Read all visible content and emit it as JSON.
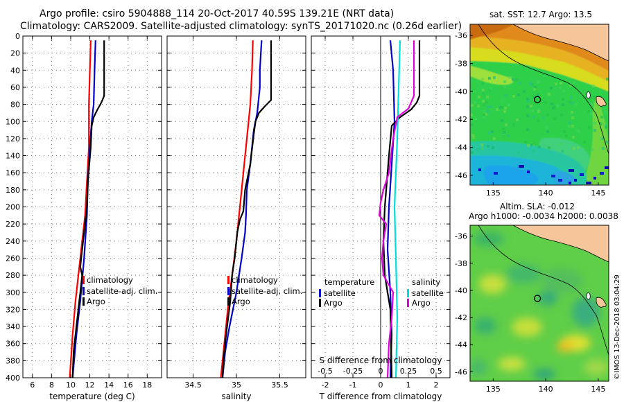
{
  "header": {
    "title_line1": "Argo profile: csiro 5904888_114 20-Oct-2017 40.59S 139.21E (NRT data)",
    "title_line2": "Climatology: CARS2009. Satellite-adjusted climatology: synTS_20171020.nc (0.26d earlier)"
  },
  "side_text": "©IMOS 13-Dec-2018 03:04:29",
  "colors": {
    "argo": "#000000",
    "climatology": "#ff0000",
    "satellite": "#0000cc",
    "sat_salinity": "#00dddd",
    "argo_salinity": "#dd00dd",
    "grid": "#777777"
  },
  "chart_data": [
    {
      "type": "line",
      "name": "temperature",
      "xlabel": "temperature (deg C)",
      "xlim": [
        5,
        19.5
      ],
      "ylim": [
        400,
        0
      ],
      "xticks": [
        6,
        8,
        10,
        12,
        14,
        16,
        18
      ],
      "yticks": [
        0,
        20,
        40,
        60,
        80,
        100,
        120,
        140,
        160,
        180,
        200,
        220,
        240,
        260,
        280,
        300,
        320,
        340,
        360,
        380,
        400
      ],
      "legend": [
        "climatology",
        "satellite-adj. clim.",
        "Argo"
      ],
      "series": [
        {
          "name": "climatology",
          "color": "#ff0000",
          "points": [
            [
              12.1,
              5
            ],
            [
              12.0,
              40
            ],
            [
              11.9,
              80
            ],
            [
              11.9,
              100
            ],
            [
              11.9,
              130
            ],
            [
              11.7,
              170
            ],
            [
              11.5,
              210
            ],
            [
              11.0,
              260
            ],
            [
              10.5,
              310
            ],
            [
              10.2,
              350
            ],
            [
              9.9,
              400
            ]
          ]
        },
        {
          "name": "satellite-adj. clim.",
          "color": "#0000cc",
          "points": [
            [
              12.6,
              5
            ],
            [
              12.5,
              40
            ],
            [
              12.4,
              80
            ],
            [
              12.2,
              100
            ],
            [
              12.0,
              130
            ],
            [
              11.8,
              170
            ],
            [
              11.7,
              210
            ],
            [
              11.4,
              260
            ],
            [
              11.0,
              310
            ],
            [
              10.6,
              350
            ],
            [
              10.2,
              400
            ]
          ]
        },
        {
          "name": "Argo",
          "color": "#000000",
          "points": [
            [
              13.5,
              5
            ],
            [
              13.5,
              70
            ],
            [
              13.2,
              78
            ],
            [
              12.8,
              86
            ],
            [
              12.4,
              95
            ],
            [
              12.2,
              105
            ],
            [
              12.1,
              130
            ],
            [
              11.8,
              170
            ],
            [
              11.7,
              200
            ],
            [
              11.4,
              230
            ],
            [
              11.2,
              250
            ],
            [
              11.0,
              270
            ],
            [
              11.2,
              280
            ],
            [
              11.0,
              300
            ],
            [
              10.6,
              340
            ],
            [
              10.3,
              370
            ],
            [
              10.2,
              400
            ]
          ]
        }
      ]
    },
    {
      "type": "line",
      "name": "salinity",
      "xlabel": "salinity",
      "xlim": [
        34.2,
        35.8
      ],
      "ylim": [
        400,
        0
      ],
      "xticks": [
        34.5,
        35,
        35.5
      ],
      "legend": [
        "climatology",
        "satellite-adj. clim.",
        "Argo"
      ],
      "series": [
        {
          "name": "climatology",
          "color": "#ff0000",
          "points": [
            [
              35.19,
              5
            ],
            [
              35.18,
              40
            ],
            [
              35.16,
              80
            ],
            [
              35.13,
              110
            ],
            [
              35.1,
              140
            ],
            [
              35.07,
              170
            ],
            [
              35.04,
              200
            ],
            [
              35.0,
              240
            ],
            [
              34.95,
              280
            ],
            [
              34.9,
              320
            ],
            [
              34.86,
              360
            ],
            [
              34.82,
              400
            ]
          ]
        },
        {
          "name": "satellite-adj. clim.",
          "color": "#0000cc",
          "points": [
            [
              35.29,
              5
            ],
            [
              35.27,
              40
            ],
            [
              35.27,
              60
            ],
            [
              35.24,
              90
            ],
            [
              35.2,
              110
            ],
            [
              35.16,
              150
            ],
            [
              35.12,
              180
            ],
            [
              35.11,
              210
            ],
            [
              35.1,
              230
            ],
            [
              35.06,
              260
            ],
            [
              35.0,
              300
            ],
            [
              34.92,
              340
            ],
            [
              34.87,
              370
            ],
            [
              34.84,
              400
            ]
          ]
        },
        {
          "name": "Argo",
          "color": "#000000",
          "points": [
            [
              35.4,
              5
            ],
            [
              35.4,
              75
            ],
            [
              35.33,
              82
            ],
            [
              35.26,
              90
            ],
            [
              35.22,
              100
            ],
            [
              35.2,
              115
            ],
            [
              35.16,
              150
            ],
            [
              35.1,
              180
            ],
            [
              35.08,
              205
            ],
            [
              35.04,
              215
            ],
            [
              35.01,
              230
            ],
            [
              34.98,
              260
            ],
            [
              34.95,
              280
            ],
            [
              34.93,
              310
            ],
            [
              34.88,
              350
            ],
            [
              34.85,
              380
            ],
            [
              34.84,
              400
            ]
          ]
        }
      ]
    },
    {
      "type": "line",
      "name": "difference from climatology",
      "xlabel": "T difference from climatology",
      "secondary_xlabel": "S difference from climatology",
      "xlim": [
        -2.5,
        2.5
      ],
      "ylim": [
        400,
        0
      ],
      "xticks": [
        -2,
        -1,
        0,
        1,
        2
      ],
      "secondary_ticks": [
        {
          "label": "-0.5",
          "t": -2.0
        },
        {
          "label": "-0.25",
          "t": -1.0
        },
        {
          "label": "0",
          "t": 0.0
        },
        {
          "label": "0.25",
          "t": 1.0
        },
        {
          "label": "0.5",
          "t": 2.0
        }
      ],
      "legend_left": {
        "heading": "temperature",
        "items": [
          "satellite",
          "Argo"
        ]
      },
      "legend_right": {
        "heading": "salinity",
        "items": [
          "satellite",
          "Argo"
        ]
      },
      "series": [
        {
          "name": "T satellite",
          "color": "#0000cc",
          "points": [
            [
              0.35,
              5
            ],
            [
              0.45,
              40
            ],
            [
              0.5,
              100
            ],
            [
              0.4,
              150
            ],
            [
              0.3,
              200
            ],
            [
              0.25,
              250
            ],
            [
              0.35,
              300
            ],
            [
              0.4,
              350
            ],
            [
              0.35,
              400
            ]
          ]
        },
        {
          "name": "T Argo",
          "color": "#000000",
          "points": [
            [
              1.4,
              5
            ],
            [
              1.4,
              70
            ],
            [
              1.3,
              78
            ],
            [
              1.1,
              86
            ],
            [
              0.7,
              95
            ],
            [
              0.4,
              105
            ],
            [
              0.3,
              140
            ],
            [
              0.15,
              200
            ],
            [
              0.1,
              240
            ],
            [
              0.15,
              280
            ],
            [
              0.35,
              320
            ],
            [
              0.4,
              400
            ]
          ]
        },
        {
          "name": "S satellite",
          "color": "#00dddd",
          "points": [
            [
              0.7,
              5
            ],
            [
              0.65,
              60
            ],
            [
              0.6,
              120
            ],
            [
              0.5,
              200
            ],
            [
              0.55,
              260
            ],
            [
              0.6,
              330
            ],
            [
              0.55,
              400
            ]
          ]
        },
        {
          "name": "S Argo",
          "color": "#dd00dd",
          "points": [
            [
              1.2,
              5
            ],
            [
              1.2,
              70
            ],
            [
              1.0,
              85
            ],
            [
              0.6,
              95
            ],
            [
              0.45,
              120
            ],
            [
              0.3,
              160
            ],
            [
              0.1,
              180
            ],
            [
              0.0,
              195
            ],
            [
              -0.05,
              210
            ],
            [
              0.2,
              220
            ],
            [
              0.1,
              240
            ],
            [
              0.05,
              260
            ],
            [
              0.1,
              280
            ],
            [
              0.45,
              300
            ],
            [
              0.4,
              330
            ],
            [
              0.3,
              360
            ],
            [
              0.25,
              400
            ]
          ]
        }
      ]
    },
    {
      "type": "heatmap",
      "name": "sst map",
      "title": "sat. SST: 12.7 Argo: 13.5",
      "xticks": [
        135,
        140,
        145
      ],
      "yticks": [
        -36,
        -38,
        -40,
        -42,
        -44,
        -46
      ],
      "xlim": [
        132.8,
        146.0
      ],
      "ylim": [
        -46.7,
        -35.2
      ],
      "float_position": [
        139.21,
        -40.59
      ]
    },
    {
      "type": "heatmap",
      "name": "sla map",
      "title_line1": "Altim. SLA: -0.012",
      "title_line2": "Argo h1000: -0.0034 h2000: 0.0038",
      "xticks": [
        135,
        140,
        145
      ],
      "yticks": [
        -36,
        -38,
        -40,
        -42,
        -44,
        -46
      ],
      "xlim": [
        132.8,
        146.0
      ],
      "ylim": [
        -46.7,
        -35.2
      ],
      "float_position": [
        139.21,
        -40.59
      ]
    }
  ]
}
